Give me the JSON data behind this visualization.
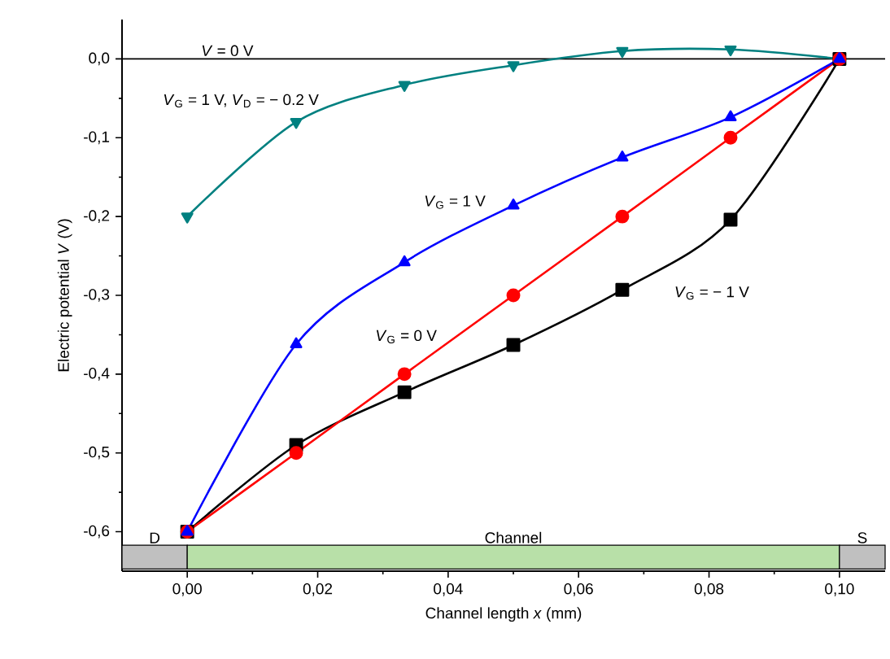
{
  "chart_data": {
    "type": "line",
    "xlabel": "Channel length *x* (mm)",
    "ylabel": "Electric potential *V* (V)",
    "x": [
      0,
      0.0167,
      0.0333,
      0.05,
      0.0667,
      0.0833,
      0.1
    ],
    "series": [
      {
        "name": "*V*$_{G}$ = 1 V, *V*$_{D}$ = − 0.2 V",
        "color": "#008080",
        "marker": "triangle-down",
        "values": [
          -0.2,
          -0.08,
          -0.033,
          -0.008,
          0.01,
          0.012,
          0
        ]
      },
      {
        "name": "*V*$_{G}$ = − 1 V",
        "color": "#000000",
        "marker": "square",
        "values": [
          -0.6,
          -0.49,
          -0.423,
          -0.363,
          -0.293,
          -0.204,
          0
        ]
      },
      {
        "name": "*V*$_{G}$ = 0 V",
        "color": "#ff0000",
        "marker": "circle",
        "values": [
          -0.6,
          -0.5,
          -0.4,
          -0.3,
          -0.2,
          -0.1,
          0
        ]
      },
      {
        "name": "*V*$_{G}$ = 1 V",
        "color": "#0000ff",
        "marker": "triangle",
        "values": [
          -0.6,
          -0.362,
          -0.258,
          -0.186,
          -0.125,
          -0.074,
          0
        ]
      }
    ],
    "xlim": [
      -0.01,
      0.107
    ],
    "ylim": [
      -0.65,
      0.05
    ],
    "xticks": [
      {
        "value": 0,
        "label": "0,00"
      },
      {
        "value": 0.02,
        "label": "0,02"
      },
      {
        "value": 0.04,
        "label": "0,04"
      },
      {
        "value": 0.06,
        "label": "0,06"
      },
      {
        "value": 0.08,
        "label": "0,08"
      },
      {
        "value": 0.1,
        "label": "0,10"
      }
    ],
    "yticks": [
      {
        "value": -0.6,
        "label": "-0,6"
      },
      {
        "value": -0.5,
        "label": "-0,5"
      },
      {
        "value": -0.4,
        "label": "-0,4"
      },
      {
        "value": -0.3,
        "label": "-0,3"
      },
      {
        "value": -0.2,
        "label": "-0,2"
      },
      {
        "value": -0.1,
        "label": "-0,1"
      },
      {
        "value": 0,
        "label": "0,0"
      }
    ],
    "ref_lines": [
      {
        "axis": "y",
        "value": 0,
        "label": "*V* = 0 V",
        "color": "#000000"
      }
    ],
    "bands": [
      {
        "axis": "x",
        "from": -0.01,
        "to": 0,
        "label": "D",
        "color": "#c0c0c0"
      },
      {
        "axis": "x",
        "from": 0,
        "to": 0.1,
        "label": "Channel",
        "color": "#b8e0a8"
      },
      {
        "axis": "x",
        "from": 0.1,
        "to": 0.107,
        "label": "S",
        "color": "#c0c0c0"
      }
    ]
  }
}
